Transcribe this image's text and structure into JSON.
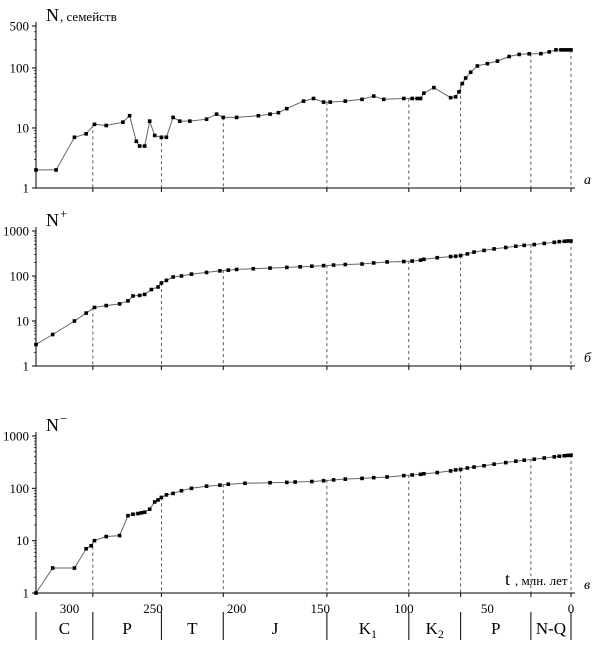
{
  "chart_data": [
    {
      "type": "line",
      "panel": "а",
      "ylabel_main": "N",
      "ylabel_suffix": ", семейств",
      "yscale": "log",
      "ylim": [
        1,
        500
      ],
      "yticks": [
        1,
        10,
        100,
        500
      ],
      "xlim": [
        320,
        0
      ],
      "x": [
        320,
        308,
        297,
        290,
        285,
        278,
        268,
        264,
        260,
        258,
        255,
        252,
        249,
        245,
        242,
        238,
        234,
        228,
        218,
        212,
        208,
        200,
        187,
        180,
        175,
        170,
        160,
        154,
        148,
        144,
        135,
        125,
        118,
        112,
        100,
        95,
        92,
        90,
        88,
        82,
        72,
        69,
        67,
        65,
        63,
        60,
        56,
        50,
        44,
        37,
        31,
        25,
        18,
        13,
        9,
        6,
        4,
        2,
        0
      ],
      "y": [
        2,
        2,
        7,
        8,
        11.5,
        11,
        12.5,
        16,
        6,
        5,
        5,
        13,
        7.5,
        7,
        7,
        15,
        13,
        13,
        14,
        17,
        15,
        15,
        16,
        17,
        18,
        21,
        28,
        31,
        27,
        27,
        28,
        30,
        34,
        30,
        31,
        31,
        31,
        31,
        38,
        47,
        32,
        33,
        40,
        55,
        68,
        85,
        108,
        118,
        130,
        155,
        168,
        172,
        173,
        185,
        200,
        200,
        200,
        200,
        200
      ],
      "period_boundaries": [
        286,
        245,
        208,
        146,
        97,
        66,
        24,
        0
      ]
    },
    {
      "type": "line",
      "panel": "б",
      "ylabel_main": "N",
      "ylabel_sup": "+",
      "yscale": "log",
      "ylim": [
        1,
        1000
      ],
      "yticks": [
        1,
        10,
        100,
        1000
      ],
      "xlim": [
        320,
        0
      ],
      "x": [
        320,
        310,
        297,
        290,
        285,
        278,
        270,
        265,
        262,
        258,
        255,
        251,
        247,
        245,
        242,
        238,
        233,
        227,
        218,
        210,
        205,
        200,
        190,
        180,
        170,
        162,
        155,
        148,
        142,
        135,
        125,
        118,
        110,
        100,
        95,
        90,
        88,
        80,
        72,
        69,
        66,
        62,
        58,
        52,
        46,
        39,
        33,
        28,
        22,
        16,
        10,
        7,
        4,
        2,
        0
      ],
      "y": [
        3,
        5,
        10,
        15,
        20,
        22,
        24,
        28,
        36,
        37,
        39,
        50,
        57,
        70,
        80,
        95,
        100,
        110,
        120,
        130,
        135,
        140,
        145,
        150,
        155,
        160,
        165,
        170,
        175,
        180,
        185,
        195,
        205,
        210,
        215,
        225,
        235,
        255,
        270,
        275,
        285,
        310,
        340,
        370,
        400,
        430,
        460,
        480,
        500,
        530,
        560,
        580,
        590,
        600,
        600
      ],
      "period_boundaries": [
        286,
        245,
        208,
        146,
        97,
        66,
        24,
        0
      ]
    },
    {
      "type": "line",
      "panel": "в",
      "ylabel_main": "N",
      "ylabel_sup": "−",
      "xlabel_main": "t",
      "xlabel_suffix": ", млн. лет",
      "yscale": "log",
      "ylim": [
        1,
        1000
      ],
      "yticks": [
        1,
        10,
        100,
        1000
      ],
      "xlim": [
        320,
        0
      ],
      "xticks": [
        300,
        250,
        200,
        150,
        100,
        50,
        0
      ],
      "x": [
        320,
        310,
        297,
        290,
        287,
        285,
        278,
        270,
        265,
        262,
        259,
        257,
        255,
        252,
        249,
        247,
        245,
        242,
        238,
        233,
        227,
        218,
        210,
        205,
        195,
        180,
        170,
        165,
        155,
        148,
        142,
        135,
        125,
        118,
        110,
        100,
        95,
        90,
        88,
        80,
        72,
        69,
        66,
        62,
        58,
        52,
        46,
        39,
        33,
        28,
        22,
        16,
        10,
        7,
        4,
        2,
        0
      ],
      "y": [
        1,
        3,
        3,
        7,
        8,
        10,
        12,
        12.5,
        30,
        32,
        33,
        34,
        35,
        40,
        55,
        60,
        67,
        75,
        80,
        90,
        100,
        110,
        115,
        120,
        125,
        128,
        130,
        132,
        135,
        140,
        145,
        150,
        155,
        160,
        165,
        175,
        180,
        185,
        190,
        200,
        215,
        225,
        230,
        245,
        255,
        270,
        290,
        310,
        330,
        345,
        360,
        380,
        400,
        410,
        420,
        425,
        430
      ],
      "period_boundaries": [
        286,
        245,
        208,
        146,
        97,
        66,
        24,
        0
      ]
    }
  ],
  "periods": [
    {
      "label": "C",
      "sub": ""
    },
    {
      "label": "P",
      "sub": ""
    },
    {
      "label": "T",
      "sub": ""
    },
    {
      "label": "J",
      "sub": ""
    },
    {
      "label": "K",
      "sub": "1"
    },
    {
      "label": "K",
      "sub": "2"
    },
    {
      "label": "P",
      "sub": ""
    },
    {
      "label": "N-Q",
      "sub": ""
    }
  ],
  "period_spans": [
    [
      340,
      286
    ],
    [
      286,
      245
    ],
    [
      245,
      208
    ],
    [
      208,
      146
    ],
    [
      146,
      97
    ],
    [
      97,
      66
    ],
    [
      66,
      24
    ],
    [
      24,
      0
    ]
  ]
}
